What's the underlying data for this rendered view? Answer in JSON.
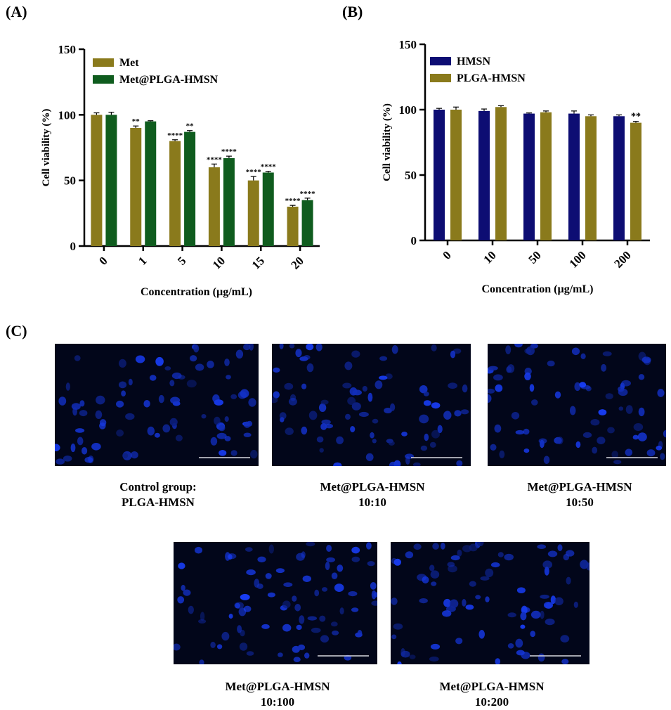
{
  "panels": {
    "a": "(A)",
    "b": "(B)",
    "c": "(C)"
  },
  "chart_data": [
    {
      "type": "bar",
      "title": "",
      "xlabel": "Concentration (µg/mL)",
      "ylabel": "Cell viability (%)",
      "ylim": [
        0,
        150
      ],
      "yticks": [
        0,
        50,
        100,
        150
      ],
      "categories": [
        "0",
        "1",
        "5",
        "10",
        "15",
        "20"
      ],
      "legend_position": "top-left",
      "series": [
        {
          "name": "Met",
          "color": "#8a7a1c",
          "values": [
            100,
            90,
            80,
            60,
            50,
            30
          ],
          "errors": [
            1.5,
            1.5,
            1,
            2.5,
            3,
            1
          ],
          "labels": [
            "",
            "**",
            "****",
            "****",
            "****",
            "****"
          ]
        },
        {
          "name": "Met@PLGA-HMSN",
          "color": "#0f5c1e",
          "values": [
            100,
            95,
            87,
            67,
            56,
            35
          ],
          "errors": [
            2,
            0.5,
            1,
            1.5,
            1,
            1.5
          ],
          "labels": [
            "",
            "",
            "**",
            "****",
            "****",
            "****"
          ]
        }
      ]
    },
    {
      "type": "bar",
      "title": "",
      "xlabel": "Concentration (µg/mL)",
      "ylabel": "Cell viability (%)",
      "ylim": [
        0,
        150
      ],
      "yticks": [
        0,
        50,
        100,
        150
      ],
      "categories": [
        "0",
        "10",
        "50",
        "100",
        "200"
      ],
      "legend_position": "top-left",
      "series": [
        {
          "name": "HMSN",
          "color": "#0d0d73",
          "values": [
            100,
            99,
            97,
            97,
            95
          ],
          "errors": [
            1,
            1.5,
            0.5,
            2,
            1
          ],
          "labels": [
            "",
            "",
            "",
            "",
            ""
          ]
        },
        {
          "name": "PLGA-HMSN",
          "color": "#8a7a1c",
          "values": [
            100,
            102,
            98,
            95,
            90
          ],
          "errors": [
            2,
            1,
            1,
            1,
            1
          ],
          "labels": [
            "",
            "",
            "",
            "",
            "**"
          ]
        }
      ]
    }
  ],
  "micrographs": [
    {
      "caption": [
        "Control group:",
        "PLGA-HMSN"
      ]
    },
    {
      "caption": [
        "Met@PLGA-HMSN",
        "10:10"
      ]
    },
    {
      "caption": [
        "Met@PLGA-HMSN",
        "10:50"
      ]
    },
    {
      "caption": [
        "Met@PLGA-HMSN",
        "10:100"
      ]
    },
    {
      "caption": [
        "Met@PLGA-HMSN",
        "10:200"
      ]
    }
  ]
}
